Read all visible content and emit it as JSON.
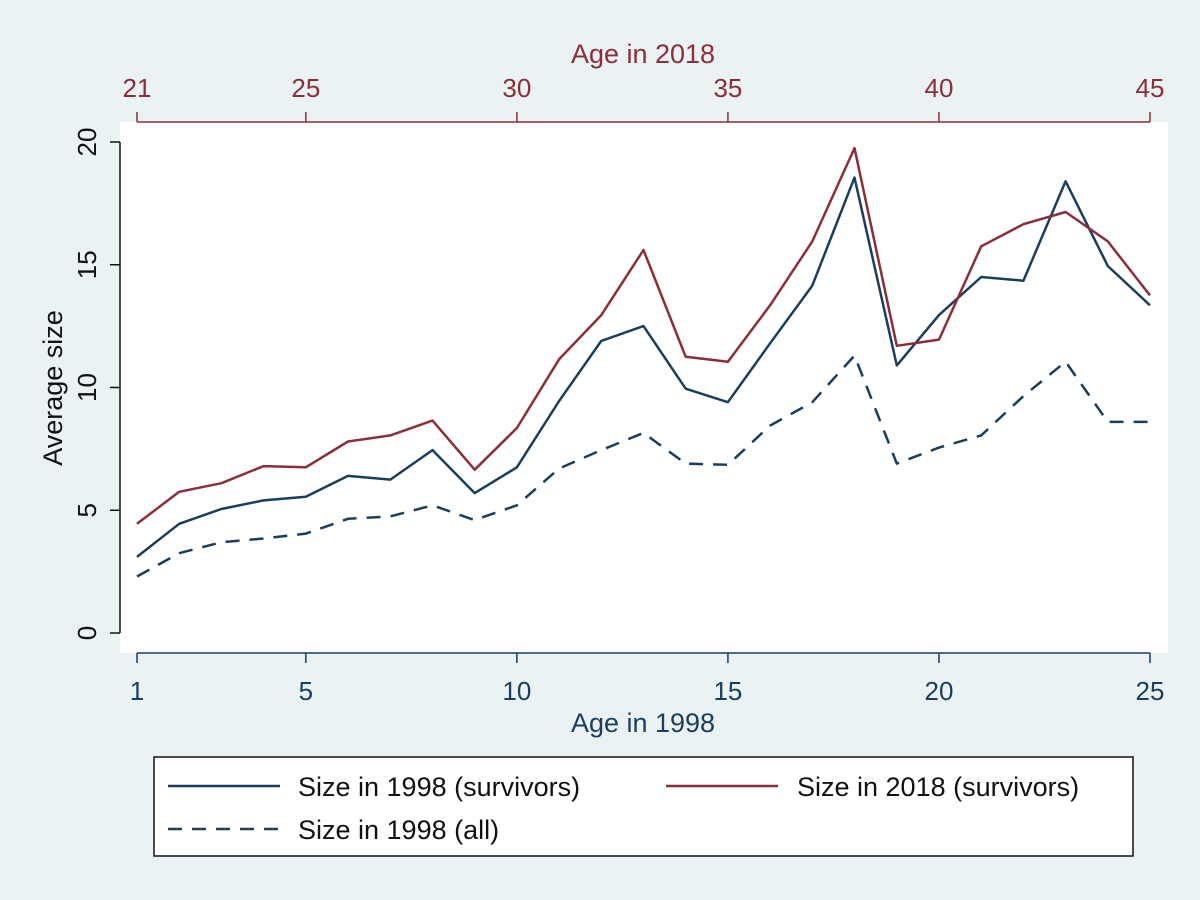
{
  "chart_data": {
    "type": "line",
    "xlabel": "Age in 1998",
    "x2label": "Age in 2018",
    "ylabel": "Average size",
    "xlim": [
      1,
      25
    ],
    "ylim": [
      0,
      20
    ],
    "x_ticks": [
      1,
      5,
      10,
      15,
      20,
      25
    ],
    "x2_ticks": [
      21,
      25,
      30,
      35,
      40,
      45
    ],
    "y_ticks": [
      0,
      5,
      10,
      15,
      20
    ],
    "grid": false,
    "legend_position": "bottom",
    "x": [
      1,
      2,
      3,
      4,
      5,
      6,
      7,
      8,
      9,
      10,
      11,
      12,
      13,
      14,
      15,
      16,
      17,
      18,
      19,
      20,
      21,
      22,
      23,
      24,
      25
    ],
    "series": [
      {
        "name": "Size in 1998 (survivors)",
        "color": "#1a3e5c",
        "style": "solid",
        "values": [
          3.1,
          4.45,
          5.05,
          5.4,
          5.55,
          6.4,
          6.25,
          7.45,
          5.7,
          6.75,
          9.45,
          11.9,
          12.5,
          9.95,
          9.4,
          11.8,
          14.15,
          18.55,
          10.9,
          12.95,
          14.5,
          14.35,
          18.4,
          14.95,
          13.35
        ]
      },
      {
        "name": "Size in 2018 (survivors)",
        "color": "#8b2e3a",
        "style": "solid",
        "values": [
          4.45,
          5.75,
          6.1,
          6.8,
          6.75,
          7.8,
          8.05,
          8.65,
          6.65,
          8.35,
          11.15,
          12.95,
          15.6,
          11.25,
          11.05,
          13.35,
          15.95,
          19.75,
          11.7,
          11.95,
          15.75,
          16.65,
          17.15,
          15.95,
          13.75
        ]
      },
      {
        "name": "Size in 1998 (all)",
        "color": "#1a3e5c",
        "style": "dashed",
        "values": [
          2.3,
          3.25,
          3.7,
          3.85,
          4.05,
          4.65,
          4.75,
          5.2,
          4.6,
          5.2,
          6.7,
          7.45,
          8.15,
          6.9,
          6.85,
          8.45,
          9.4,
          11.3,
          6.9,
          7.55,
          8.05,
          9.65,
          11.05,
          8.6,
          8.6
        ]
      }
    ]
  }
}
